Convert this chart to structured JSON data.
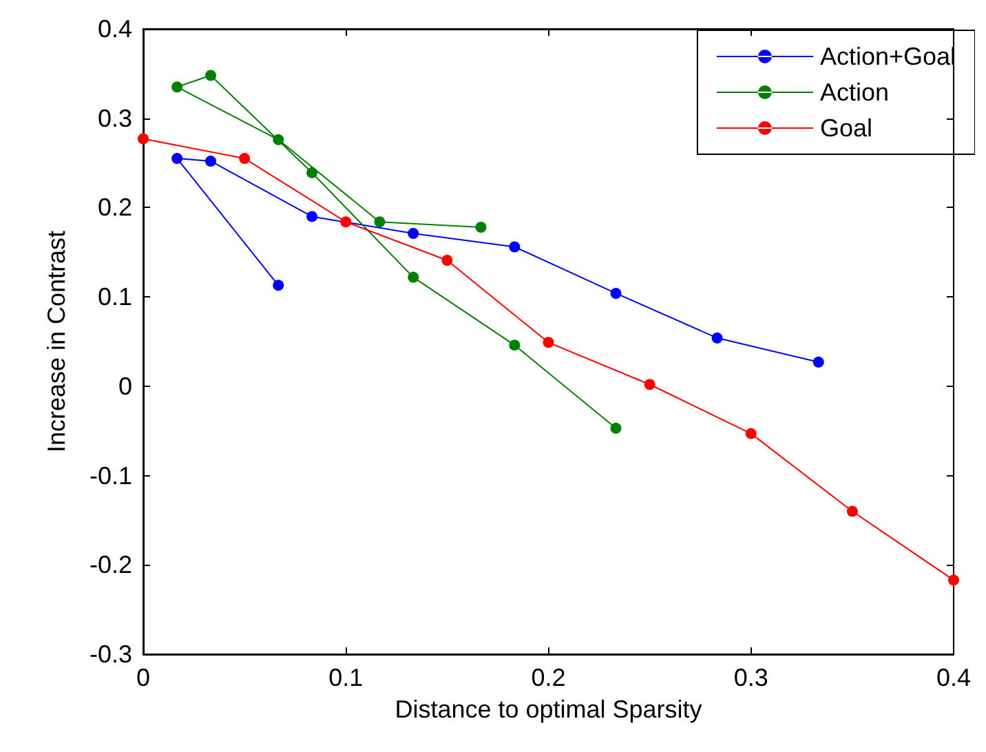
{
  "chart_data": {
    "type": "line",
    "xlabel": "Distance to optimal Sparsity",
    "ylabel": "Increase in Contrast",
    "xlim": [
      0,
      0.4
    ],
    "xticks": [
      0,
      0.1,
      0.2,
      0.3,
      0.4
    ],
    "ylim": [
      -0.3,
      0.4
    ],
    "yticks": [
      -0.3,
      -0.2,
      -0.1,
      0,
      0.1,
      0.2,
      0.3,
      0.4
    ],
    "grid": false,
    "legend": "top right",
    "marker": "circle",
    "line_style": "solid",
    "series": [
      {
        "name": "Action+Goal",
        "color": "#0000ff",
        "x": [
          0.0667,
          0.0167,
          0.0333,
          0.0833,
          0.1333,
          0.1833,
          0.2333,
          0.2833,
          0.3333
        ],
        "values": [
          0.113,
          0.255,
          0.252,
          0.19,
          0.171,
          0.156,
          0.104,
          0.054,
          0.027
        ]
      },
      {
        "name": "Action",
        "color": "#008000",
        "x": [
          0.1667,
          0.1167,
          0.0667,
          0.0167,
          0.0333,
          0.0833,
          0.1333,
          0.1833,
          0.2333
        ],
        "values": [
          0.178,
          0.184,
          0.276,
          0.335,
          0.348,
          0.239,
          0.122,
          0.046,
          -0.047
        ]
      },
      {
        "name": "Goal",
        "color": "#ff0000",
        "x": [
          0,
          0.05,
          0.1,
          0.15,
          0.2,
          0.25,
          0.3,
          0.35,
          0.4
        ],
        "values": [
          0.277,
          0.255,
          0.184,
          0.141,
          0.049,
          0.002,
          -0.053,
          -0.14,
          -0.217
        ]
      }
    ]
  }
}
